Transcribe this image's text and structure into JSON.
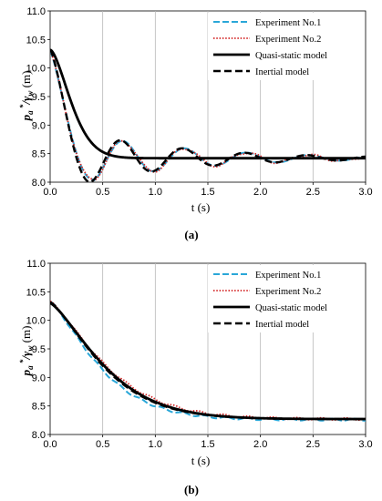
{
  "chart_data": [
    {
      "type": "line",
      "panel_label": "(a)",
      "xlabel": "t (s)",
      "ylabel_main": "p",
      "ylabel_sub": "a",
      "ylabel_sup": " *",
      "ylabel_slash": "/",
      "ylabel_gamma": "γ",
      "ylabel_gamma_sub": "w",
      "ylabel_unit": " (m)",
      "xlim": [
        0,
        3
      ],
      "ylim": [
        8,
        11
      ],
      "xticks": [
        "0.0",
        "0.5",
        "1.0",
        "1.5",
        "2.0",
        "2.5",
        "3.0"
      ],
      "yticks": [
        "8.0",
        "8.5",
        "9.0",
        "9.5",
        "10.0",
        "10.5",
        "11.0"
      ],
      "grid": "vertical",
      "legend_position": "top-right",
      "series": [
        {
          "name": "Experiment No.1",
          "style": "dashed",
          "color": "#2aa7d8"
        },
        {
          "name": "Experiment No.2",
          "style": "dotted",
          "color": "#d42a2a"
        },
        {
          "name": "Quasi-static model",
          "style": "solid",
          "color": "#000000"
        },
        {
          "name": "Inertial model",
          "style": "dashed",
          "color": "#000000"
        }
      ]
    },
    {
      "type": "line",
      "panel_label": "(b)",
      "xlabel": "t (s)",
      "ylabel_main": "p",
      "ylabel_sub": "a",
      "ylabel_sup": " *",
      "ylabel_slash": "/",
      "ylabel_gamma": "γ",
      "ylabel_gamma_sub": "w",
      "ylabel_unit": " (m)",
      "xlim": [
        0,
        3
      ],
      "ylim": [
        8,
        11
      ],
      "xticks": [
        "0.0",
        "0.5",
        "1.0",
        "1.5",
        "2.0",
        "2.5",
        "3.0"
      ],
      "yticks": [
        "8.0",
        "8.5",
        "9.0",
        "9.5",
        "10.0",
        "10.5",
        "11.0"
      ],
      "grid": "vertical",
      "legend_position": "top-right",
      "series": [
        {
          "name": "Experiment No.1",
          "style": "dashed",
          "color": "#2aa7d8"
        },
        {
          "name": "Experiment No.2",
          "style": "dotted",
          "color": "#d42a2a"
        },
        {
          "name": "Quasi-static model",
          "style": "solid",
          "color": "#000000"
        },
        {
          "name": "Inertial model",
          "style": "dashed",
          "color": "#000000"
        }
      ]
    }
  ]
}
